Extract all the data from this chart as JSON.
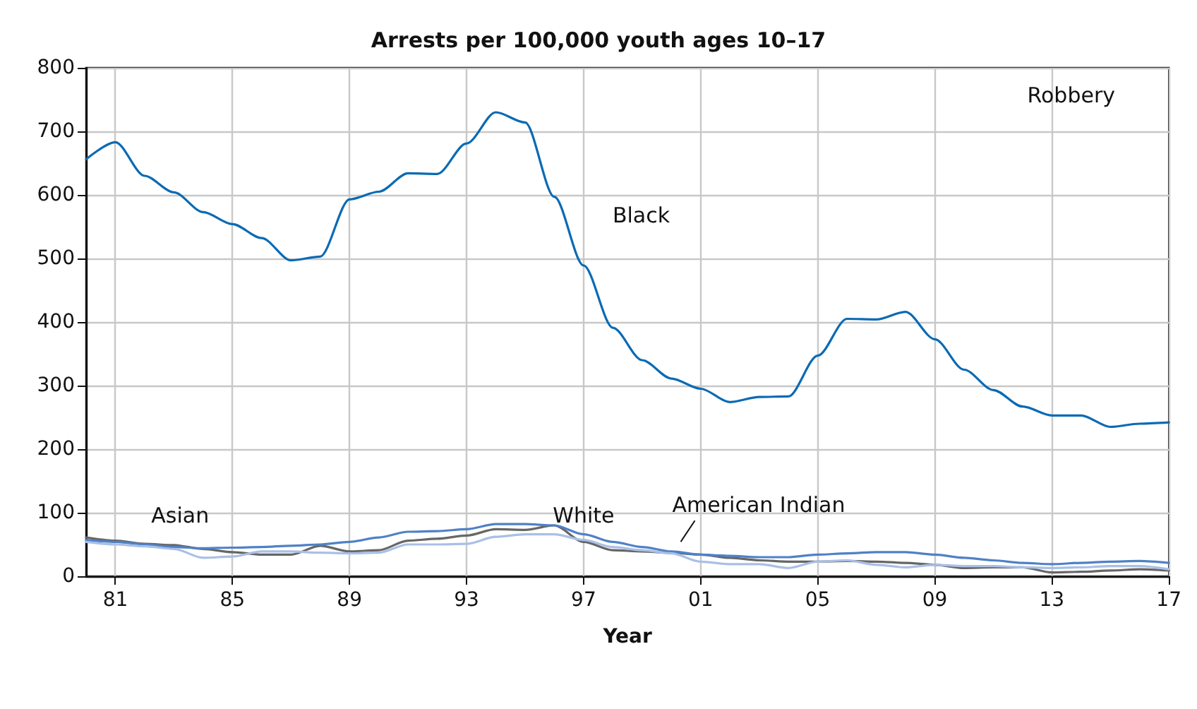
{
  "chart_data": {
    "type": "line",
    "title": "Arrests per 100,000 youth ages 10–17",
    "xlabel": "Year",
    "x": [
      1980,
      1981,
      1982,
      1983,
      1984,
      1985,
      1986,
      1987,
      1988,
      1989,
      1990,
      1991,
      1992,
      1993,
      1994,
      1995,
      1996,
      1997,
      1998,
      1999,
      2000,
      2001,
      2002,
      2003,
      2004,
      2005,
      2006,
      2007,
      2008,
      2009,
      2010,
      2011,
      2012,
      2013,
      2014,
      2015,
      2016,
      2017
    ],
    "series": [
      {
        "name": "Black",
        "color": "#0a6ab4",
        "values": [
          656,
          683,
          630,
          604,
          573,
          554,
          532,
          497,
          503,
          593,
          605,
          634,
          633,
          681,
          730,
          714,
          597,
          489,
          391,
          340,
          311,
          295,
          274,
          282,
          283,
          347,
          405,
          404,
          416,
          373,
          325,
          293,
          267,
          253,
          253,
          235,
          240,
          242
        ]
      },
      {
        "name": "White",
        "color": "#666666",
        "values": [
          61,
          56,
          51,
          49,
          43,
          38,
          34,
          34,
          48,
          39,
          41,
          56,
          59,
          64,
          74,
          73,
          80,
          54,
          41,
          39,
          37,
          34,
          29,
          25,
          23,
          23,
          24,
          23,
          21,
          18,
          13,
          14,
          14,
          6,
          7,
          9,
          11,
          9
        ]
      },
      {
        "name": "American Indian",
        "color": "#4f81c7",
        "values": [
          57,
          54,
          50,
          46,
          44,
          45,
          46,
          48,
          50,
          54,
          61,
          70,
          71,
          74,
          82,
          82,
          80,
          66,
          54,
          46,
          39,
          34,
          32,
          30,
          30,
          34,
          36,
          38,
          38,
          34,
          29,
          25,
          21,
          19,
          21,
          23,
          24,
          21
        ]
      },
      {
        "name": "Asian",
        "color": "#a9bfe6",
        "values": [
          54,
          50,
          47,
          43,
          29,
          31,
          39,
          39,
          37,
          36,
          37,
          50,
          50,
          51,
          62,
          66,
          66,
          57,
          46,
          41,
          36,
          23,
          19,
          19,
          13,
          23,
          25,
          18,
          14,
          18,
          16,
          16,
          14,
          13,
          14,
          16,
          16,
          11
        ]
      }
    ],
    "annotations": [
      "Robbery"
    ],
    "xlim": [
      1980,
      2017
    ],
    "xticks": [
      {
        "value": 1981,
        "label": "81"
      },
      {
        "value": 1985,
        "label": "85"
      },
      {
        "value": 1989,
        "label": "89"
      },
      {
        "value": 1993,
        "label": "93"
      },
      {
        "value": 1997,
        "label": "97"
      },
      {
        "value": 2001,
        "label": "01"
      },
      {
        "value": 2005,
        "label": "05"
      },
      {
        "value": 2009,
        "label": "09"
      },
      {
        "value": 2013,
        "label": "13"
      },
      {
        "value": 2017,
        "label": "17"
      }
    ],
    "ylim": [
      0,
      800
    ],
    "yticks": [
      0,
      100,
      200,
      300,
      400,
      500,
      600,
      700,
      800
    ],
    "grid": true,
    "legend": false,
    "marker": "none",
    "line_style": "solid"
  }
}
